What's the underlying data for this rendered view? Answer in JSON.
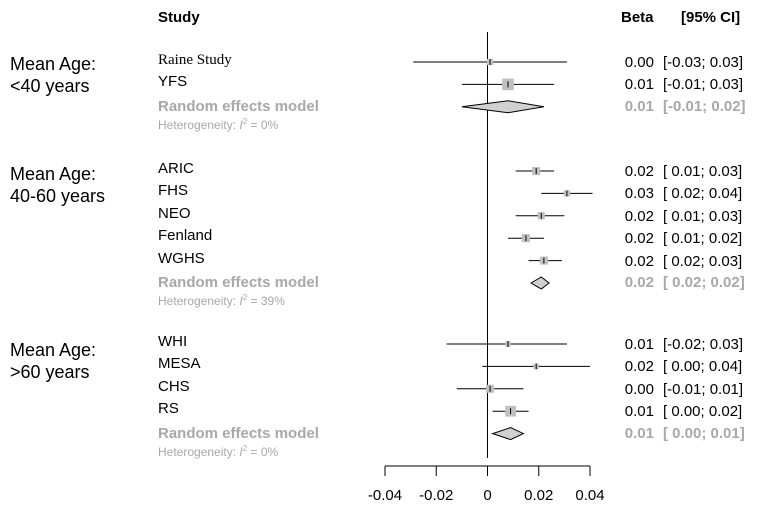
{
  "header": {
    "study": "Study",
    "beta": "Beta",
    "ci": "[95% CI]"
  },
  "chart_data": {
    "type": "forest",
    "xlim": [
      -0.04,
      0.04
    ],
    "x_ticks": [
      "-0.04",
      "-0.02",
      "0",
      "0.02",
      "0.04"
    ],
    "reference_line": 0,
    "groups": [
      {
        "label": "Mean Age:\n<40 years",
        "studies": [
          {
            "name": "Raine Study",
            "beta": 0.001,
            "lo": -0.029,
            "hi": 0.031,
            "weight": 0.35,
            "beta_text": "0.00",
            "ci_text": "[-0.03; 0.03]",
            "serif": true
          },
          {
            "name": "YFS",
            "beta": 0.008,
            "lo": -0.01,
            "hi": 0.026,
            "weight": 0.65,
            "beta_text": "0.01",
            "ci_text": "[-0.01; 0.03]"
          }
        ],
        "model": {
          "name": "Random effects model",
          "beta": 0.008,
          "lo": -0.01,
          "hi": 0.022,
          "beta_text": "0.01",
          "ci_text": "[-0.01; 0.02]"
        },
        "heterogeneity": {
          "prefix": "Heterogeneity: ",
          "symbol": "I",
          "sup": "2",
          "value": " = 0%"
        }
      },
      {
        "label": "Mean Age:\n40-60 years",
        "studies": [
          {
            "name": "ARIC",
            "beta": 0.019,
            "lo": 0.011,
            "hi": 0.026,
            "weight": 0.45,
            "beta_text": "0.02",
            "ci_text": "[ 0.01; 0.03]"
          },
          {
            "name": "FHS",
            "beta": 0.031,
            "lo": 0.021,
            "hi": 0.041,
            "weight": 0.35,
            "beta_text": "0.03",
            "ci_text": "[ 0.02; 0.04]"
          },
          {
            "name": "NEO",
            "beta": 0.021,
            "lo": 0.011,
            "hi": 0.03,
            "weight": 0.4,
            "beta_text": "0.02",
            "ci_text": "[ 0.01; 0.03]"
          },
          {
            "name": "Fenland",
            "beta": 0.015,
            "lo": 0.008,
            "hi": 0.022,
            "weight": 0.45,
            "beta_text": "0.02",
            "ci_text": "[ 0.01; 0.02]"
          },
          {
            "name": "WGHS",
            "beta": 0.022,
            "lo": 0.016,
            "hi": 0.029,
            "weight": 0.45,
            "beta_text": "0.02",
            "ci_text": "[ 0.02; 0.03]"
          }
        ],
        "model": {
          "name": "Random effects model",
          "beta": 0.021,
          "lo": 0.017,
          "hi": 0.024,
          "beta_text": "0.02",
          "ci_text": "[ 0.02; 0.02]"
        },
        "heterogeneity": {
          "prefix": "Heterogeneity: ",
          "symbol": "I",
          "sup": "2",
          "value": " = 39%"
        }
      },
      {
        "label": "Mean Age:\n>60 years",
        "studies": [
          {
            "name": "WHI",
            "beta": 0.008,
            "lo": -0.016,
            "hi": 0.031,
            "weight": 0.3,
            "beta_text": "0.01",
            "ci_text": "[-0.02; 0.03]"
          },
          {
            "name": "MESA",
            "beta": 0.019,
            "lo": -0.002,
            "hi": 0.04,
            "weight": 0.3,
            "beta_text": "0.02",
            "ci_text": "[ 0.00; 0.04]"
          },
          {
            "name": "CHS",
            "beta": 0.001,
            "lo": -0.012,
            "hi": 0.014,
            "weight": 0.45,
            "beta_text": "0.00",
            "ci_text": "[-0.01; 0.01]"
          },
          {
            "name": "RS",
            "beta": 0.009,
            "lo": 0.002,
            "hi": 0.016,
            "weight": 0.6,
            "beta_text": "0.01",
            "ci_text": "[ 0.00; 0.02]"
          }
        ],
        "model": {
          "name": "Random effects model",
          "beta": 0.009,
          "lo": 0.002,
          "hi": 0.014,
          "beta_text": "0.01",
          "ci_text": "[ 0.00; 0.01]"
        },
        "heterogeneity": {
          "prefix": "Heterogeneity: ",
          "symbol": "I",
          "sup": "2",
          "value": " = 0%"
        }
      }
    ]
  },
  "colors": {
    "box": "#c0c0c0",
    "model": "#a8a8a8",
    "diamond_fill": "#d0d0d0",
    "line": "#000000"
  }
}
